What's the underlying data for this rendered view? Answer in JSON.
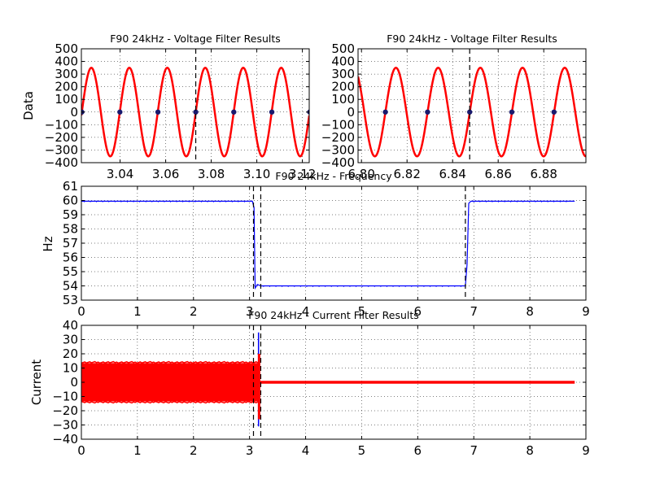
{
  "chart_data": [
    {
      "type": "line",
      "title": "F90 24kHz - Voltage Filter Results",
      "ylabel": "Data",
      "xlabel": "",
      "xlim": [
        3.023,
        3.123
      ],
      "ylim": [
        -400,
        500
      ],
      "xticks": [
        3.04,
        3.06,
        3.08,
        3.1,
        3.12
      ],
      "xtick_labels": [
        "3.04",
        "3.06",
        "3.08",
        "3.10",
        "3.12"
      ],
      "yticks": [
        -400,
        -300,
        -200,
        -100,
        0,
        100,
        200,
        300,
        400,
        500
      ],
      "ytick_labels": [
        "−400",
        "−300",
        "−200",
        "−100",
        "0",
        "100",
        "200",
        "300",
        "400",
        "500"
      ],
      "grid": true,
      "series": [
        {
          "kind": "sine",
          "color": "#ff0000",
          "amplitude": 350,
          "frequency_hz": 60,
          "zero_crossing_t": 3.0232
        }
      ],
      "markers": {
        "color": "#1a1a6e",
        "x": [
          3.0232,
          3.0399,
          3.0566,
          3.0732,
          3.0899,
          3.1066,
          3.1232
        ]
      },
      "vlines": [
        3.0732
      ]
    },
    {
      "type": "line",
      "title": "F90 24kHz - Voltage Filter Results",
      "ylabel": "",
      "xlabel": "",
      "xlim": [
        6.7985,
        6.8985
      ],
      "ylim": [
        -400,
        500
      ],
      "xticks": [
        6.8,
        6.82,
        6.84,
        6.86,
        6.88
      ],
      "xtick_labels": [
        "6.80",
        "6.82",
        "6.84",
        "6.86",
        "6.88"
      ],
      "yticks": [
        -400,
        -300,
        -200,
        -100,
        0,
        100,
        200,
        300,
        400,
        500
      ],
      "ytick_labels": [
        "−400",
        "−300",
        "−200",
        "−100",
        "0",
        "100",
        "200",
        "300",
        "400",
        "500"
      ],
      "grid": true,
      "series": [
        {
          "kind": "sine",
          "color": "#ff0000",
          "amplitude": 350,
          "frequency_hz": 54,
          "zero_crossing_t": 6.8105
        }
      ],
      "markers": {
        "color": "#1a1a6e",
        "x": [
          6.8105,
          6.829,
          6.8475,
          6.866,
          6.8845
        ]
      },
      "vlines": [
        6.8475
      ]
    },
    {
      "type": "line",
      "title": "F90 24kHz - Frequency",
      "ylabel": "Hz",
      "xlabel": "",
      "xlim": [
        0,
        9
      ],
      "ylim": [
        53,
        61
      ],
      "xticks": [
        0,
        1,
        2,
        3,
        4,
        5,
        6,
        7,
        8,
        9
      ],
      "xtick_labels": [
        "0",
        "1",
        "2",
        "3",
        "4",
        "5",
        "6",
        "7",
        "8",
        "9"
      ],
      "yticks": [
        53,
        54,
        55,
        56,
        57,
        58,
        59,
        60,
        61
      ],
      "ytick_labels": [
        "53",
        "54",
        "55",
        "56",
        "57",
        "58",
        "59",
        "60",
        "61"
      ],
      "grid": true,
      "series": [
        {
          "color": "#0000ff",
          "x": [
            0,
            3.05,
            3.08,
            3.1,
            3.14,
            3.2,
            6.85,
            6.88,
            6.91,
            6.95,
            8.8
          ],
          "y": [
            59.95,
            59.95,
            59.5,
            53.85,
            54.1,
            54.0,
            54.0,
            55.5,
            59.8,
            59.95,
            59.95
          ]
        }
      ],
      "vlines": [
        3.07,
        3.2,
        6.85
      ]
    },
    {
      "type": "line",
      "title": "F90 24kHz - Current Filter Results",
      "ylabel": "Current",
      "xlabel": "",
      "xlim": [
        0,
        9
      ],
      "ylim": [
        -40,
        40
      ],
      "xticks": [
        0,
        1,
        2,
        3,
        4,
        5,
        6,
        7,
        8,
        9
      ],
      "xtick_labels": [
        "0",
        "1",
        "2",
        "3",
        "4",
        "5",
        "6",
        "7",
        "8",
        "9"
      ],
      "yticks": [
        -40,
        -30,
        -20,
        -10,
        0,
        10,
        20,
        30,
        40
      ],
      "ytick_labels": [
        "−40",
        "−30",
        "−20",
        "−10",
        "0",
        "10",
        "20",
        "30",
        "40"
      ],
      "grid": true,
      "series": [
        {
          "name": "",
          "color": "#0000ff",
          "spike": {
            "x": 3.16,
            "max": 35,
            "min": -31
          }
        },
        {
          "name": "",
          "color": "#ff0000",
          "band": {
            "x0": 0,
            "x1": 3.17,
            "ymax": 13.5,
            "ymin": -13.5
          },
          "tail": {
            "x0": 3.18,
            "x1": 8.8,
            "y": 0
          },
          "spike": {
            "x": 3.17,
            "max": 20,
            "min": -26
          }
        }
      ],
      "vlines": [
        3.07,
        3.2
      ]
    }
  ]
}
